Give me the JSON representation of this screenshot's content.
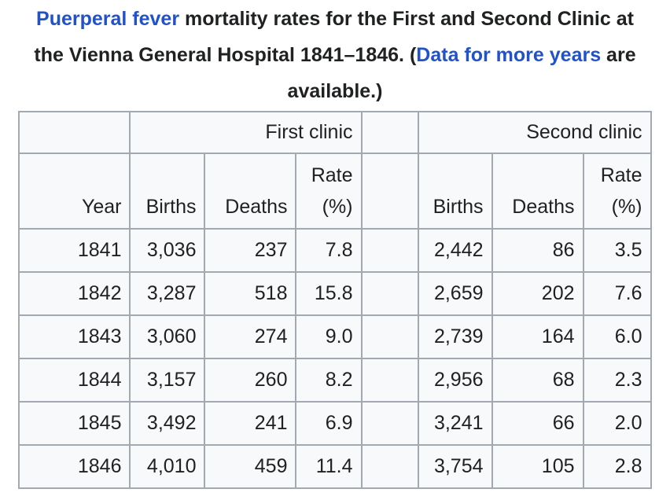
{
  "caption": {
    "segments": [
      {
        "text": "Puerperal fever",
        "link": true
      },
      {
        "text": " mortality rates for the First and Second Clinic at the Vienna General Hospital 1841–1846. (",
        "link": false
      },
      {
        "text": "Data for more years",
        "link": true
      },
      {
        "text": " are available.)",
        "link": false
      }
    ],
    "link_color": "#2152c8"
  },
  "table": {
    "colors": {
      "cell_bg": "#f8f9fa",
      "border": "#a2a9b1",
      "text": "#202122"
    },
    "group_headers": {
      "first": "First clinic",
      "second": "Second clinic"
    },
    "columns": [
      "Year",
      "Births",
      "Deaths",
      "Rate (%)"
    ],
    "rows": [
      [
        "1841",
        "3,036",
        "237",
        "7.8",
        "",
        "2,442",
        "86",
        "3.5"
      ],
      [
        "1842",
        "3,287",
        "518",
        "15.8",
        "",
        "2,659",
        "202",
        "7.6"
      ],
      [
        "1843",
        "3,060",
        "274",
        "9.0",
        "",
        "2,739",
        "164",
        "6.0"
      ],
      [
        "1844",
        "3,157",
        "260",
        "8.2",
        "",
        "2,956",
        "68",
        "2.3"
      ],
      [
        "1845",
        "3,492",
        "241",
        "6.9",
        "",
        "3,241",
        "66",
        "2.0"
      ],
      [
        "1846",
        "4,010",
        "459",
        "11.4",
        "",
        "3,754",
        "105",
        "2.8"
      ]
    ]
  }
}
